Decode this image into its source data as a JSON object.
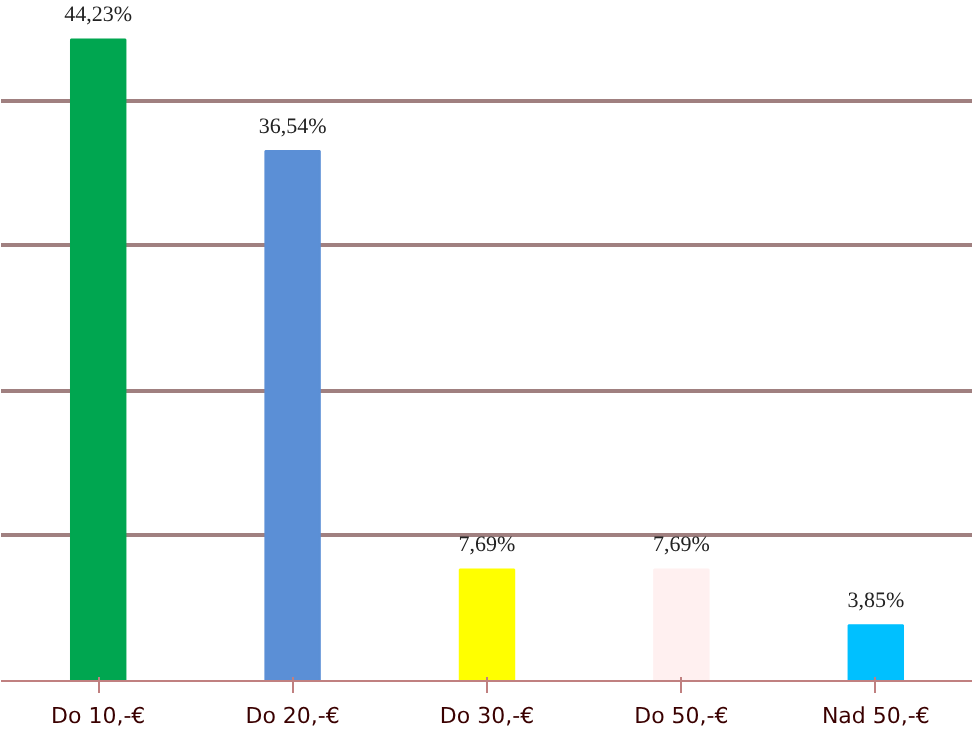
{
  "chart_data": {
    "type": "bar",
    "categories": [
      "Do 10,-€",
      "Do 20,-€",
      "Do 30,-€",
      "Do 50,-€",
      "Nad 50,-€"
    ],
    "values": [
      44.23,
      36.54,
      7.69,
      7.69,
      3.85
    ],
    "value_labels": [
      "44,23%",
      "36,54%",
      "7,69%",
      "7,69%",
      "3,85%"
    ],
    "colors": [
      "#00a650",
      "#5b8fd6",
      "#ffff00",
      "#fff0f0",
      "#00c0ff"
    ],
    "grid": "y",
    "tick_labels": "x"
  }
}
